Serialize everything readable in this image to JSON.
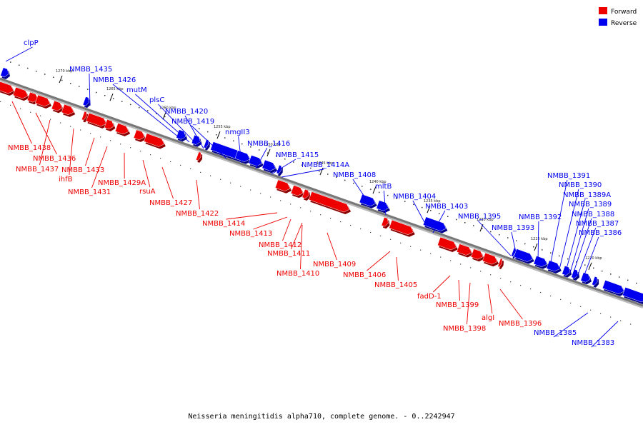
{
  "caption": "Neisseria meningitidis alpha710, complete genome. - 0..2242947",
  "legend": [
    {
      "label": "Forward",
      "color": "#ee0000"
    },
    {
      "label": "Reverse",
      "color": "#0000ee"
    }
  ],
  "colors": {
    "forward": "#ee0000",
    "reverse": "#0000ee",
    "backbone": "#777777"
  },
  "ticks": [
    "1270 kbp",
    "1265 kbp",
    "1260 kbp",
    "1255 kbp",
    "1250 kbp",
    "1245 kbp",
    "1240 kbp",
    "1235 kbp",
    "1230 kbp",
    "1225 kbp",
    "1220 kbp"
  ],
  "reverse_labels": [
    "clpP",
    "NMBB_1435",
    "NMBB_1426",
    "mutM",
    "plsC",
    "NMBB_1420",
    "NMBB_1419",
    "nmgII3",
    "NMBB_1416",
    "NMBB_1415",
    "NMBB_1414A",
    "NMBB_1408",
    "mltB",
    "NMBB_1404",
    "NMBB_1403",
    "NMBB_1395",
    "NMBB_1393",
    "NMBB_1392",
    "NMBB_1391",
    "NMBB_1390",
    "NMBB_1389A",
    "NMBB_1389",
    "NMBB_1388",
    "NMBB_1387",
    "NMBB_1386",
    "NMBB_1385",
    "NMBB_1383"
  ],
  "forward_labels": [
    "NMBB_1438",
    "NMBB_1436",
    "NMBB_1437",
    "ihfB",
    "NMBB_1433",
    "NMBB_1431",
    "NMBB_1429A",
    "rsuA",
    "NMBB_1427",
    "NMBB_1422",
    "NMBB_1414",
    "NMBB_1413",
    "NMBB_1412",
    "NMBB_1411",
    "NMBB_1410",
    "NMBB_1409",
    "NMBB_1406",
    "NMBB_1405",
    "fadD-1",
    "NMBB_1399",
    "NMBB_1398",
    "algI",
    "NMBB_1396"
  ]
}
